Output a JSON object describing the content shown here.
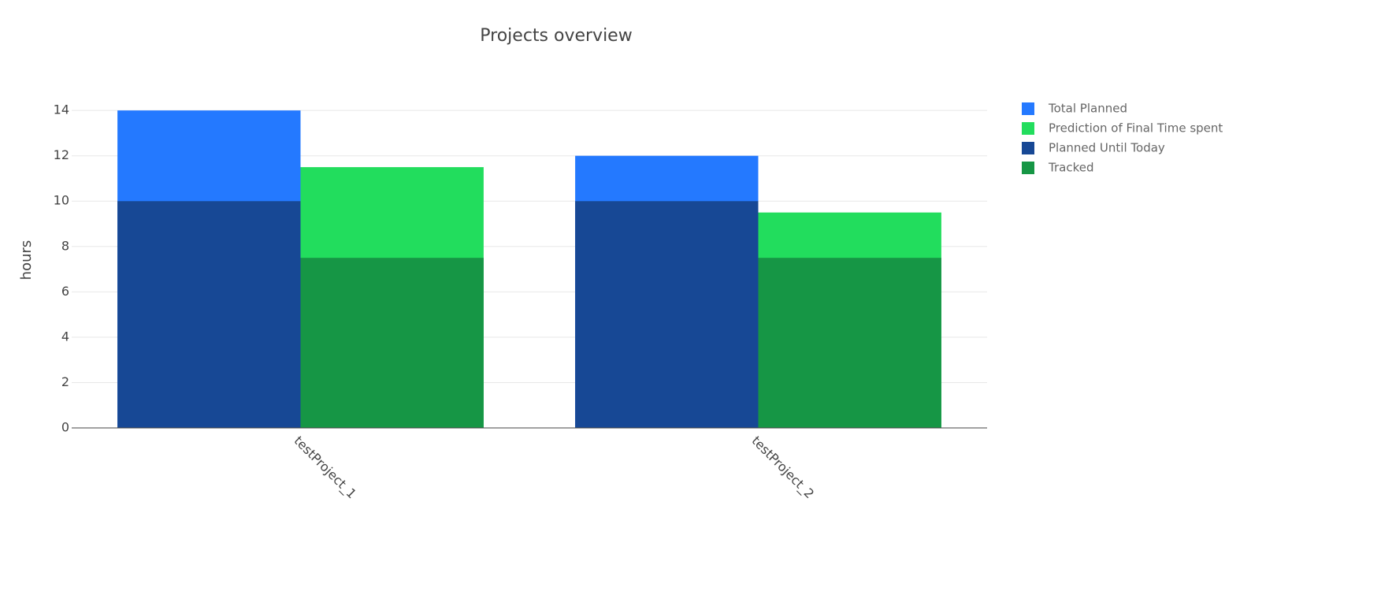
{
  "chart_data": {
    "type": "bar",
    "barmode": "overlay",
    "title": "Projects overview",
    "y_label": "hours",
    "categories": [
      "testProject_1",
      "testProject_2"
    ],
    "series": [
      {
        "name": "Total Planned",
        "color": "#2479ff",
        "values": [
          14,
          12
        ]
      },
      {
        "name": "Prediction of Final Time spent",
        "color": "#22dd5d",
        "values": [
          11.5,
          9.5
        ]
      },
      {
        "name": "Planned Until Today",
        "color": "#174895",
        "values": [
          10,
          10
        ]
      },
      {
        "name": "Tracked",
        "color": "#169645",
        "values": [
          7.5,
          7.5
        ]
      }
    ],
    "ylim": [
      0,
      14.7
    ],
    "yticks": [
      0,
      2,
      4,
      6,
      8,
      10,
      12,
      14
    ],
    "grid": true,
    "legend": "right"
  }
}
